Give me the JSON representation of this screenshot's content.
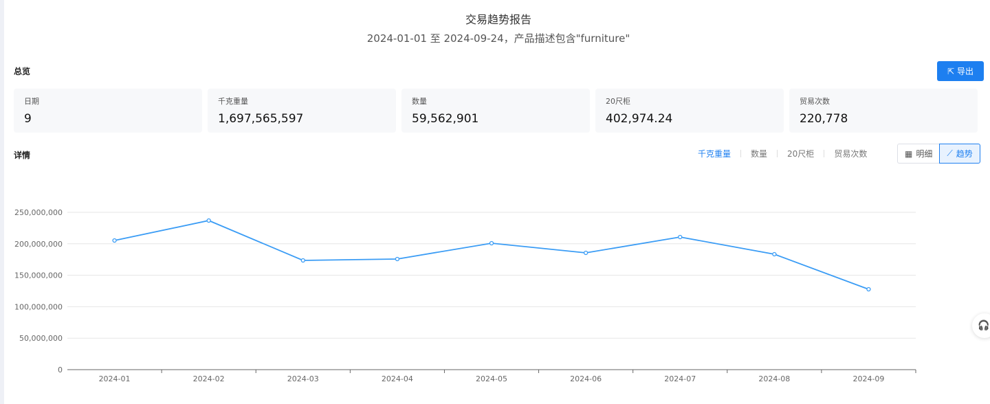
{
  "header": {
    "title": "交易趋势报告",
    "subtitle": "2024-01-01 至 2024-09-24，产品描述包含\"furniture\""
  },
  "overview": {
    "title": "总览",
    "export_label": "导出",
    "cards": [
      {
        "label": "日期",
        "value": "9"
      },
      {
        "label": "千克重量",
        "value": "1,697,565,597"
      },
      {
        "label": "数量",
        "value": "59,562,901"
      },
      {
        "label": "20尺柜",
        "value": "402,974.24"
      },
      {
        "label": "贸易次数",
        "value": "220,778"
      }
    ]
  },
  "details": {
    "title": "详情",
    "metrics": [
      "千克重量",
      "数量",
      "20尺柜",
      "贸易次数"
    ],
    "active_metric": "千克重量",
    "view_toggle": [
      "明细",
      "趋势"
    ],
    "active_view": "趋势"
  },
  "colors": {
    "accent": "#1d7ff0",
    "line": "#3a9cf5"
  },
  "chart_data": {
    "type": "line",
    "categories": [
      "2024-01",
      "2024-02",
      "2024-03",
      "2024-04",
      "2024-05",
      "2024-06",
      "2024-07",
      "2024-08",
      "2024-09"
    ],
    "values": [
      205200000,
      236900000,
      173600000,
      175800000,
      200900000,
      185600000,
      210700000,
      183400000,
      127700000
    ],
    "ylim": [
      0,
      250000000
    ],
    "yticks": [
      "0",
      "50,000,000",
      "100,000,000",
      "150,000,000",
      "200,000,000",
      "250,000,000"
    ],
    "grid": true
  }
}
